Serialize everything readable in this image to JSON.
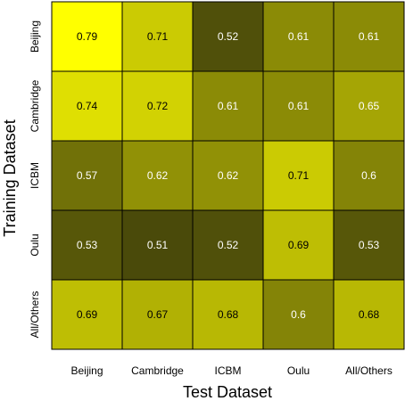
{
  "chart_data": {
    "type": "heatmap",
    "xlabel": "Test Dataset",
    "ylabel": "Training Dataset",
    "x_categories": [
      "Beijing",
      "Cambridge",
      "ICBM",
      "Oulu",
      "All/Others"
    ],
    "y_categories": [
      "Beijing",
      "Cambridge",
      "ICBM",
      "Oulu",
      "All/Others"
    ],
    "values": [
      [
        0.79,
        0.71,
        0.52,
        0.61,
        0.61
      ],
      [
        0.74,
        0.72,
        0.61,
        0.61,
        0.65
      ],
      [
        0.57,
        0.62,
        0.62,
        0.71,
        0.6
      ],
      [
        0.53,
        0.51,
        0.52,
        0.69,
        0.53
      ],
      [
        0.69,
        0.67,
        0.68,
        0.6,
        0.68
      ]
    ],
    "value_labels": [
      [
        "0.79",
        "0.71",
        "0.52",
        "0.61",
        "0.61"
      ],
      [
        "0.74",
        "0.72",
        "0.61",
        "0.61",
        "0.65"
      ],
      [
        "0.57",
        "0.62",
        "0.62",
        "0.71",
        "0.6"
      ],
      [
        "0.53",
        "0.51",
        "0.52",
        "0.69",
        "0.53"
      ],
      [
        "0.69",
        "0.67",
        "0.68",
        "0.6",
        "0.68"
      ]
    ],
    "color_low": "#4a4a0a",
    "color_high": "#ffff00",
    "grid": false,
    "legend": "none"
  }
}
